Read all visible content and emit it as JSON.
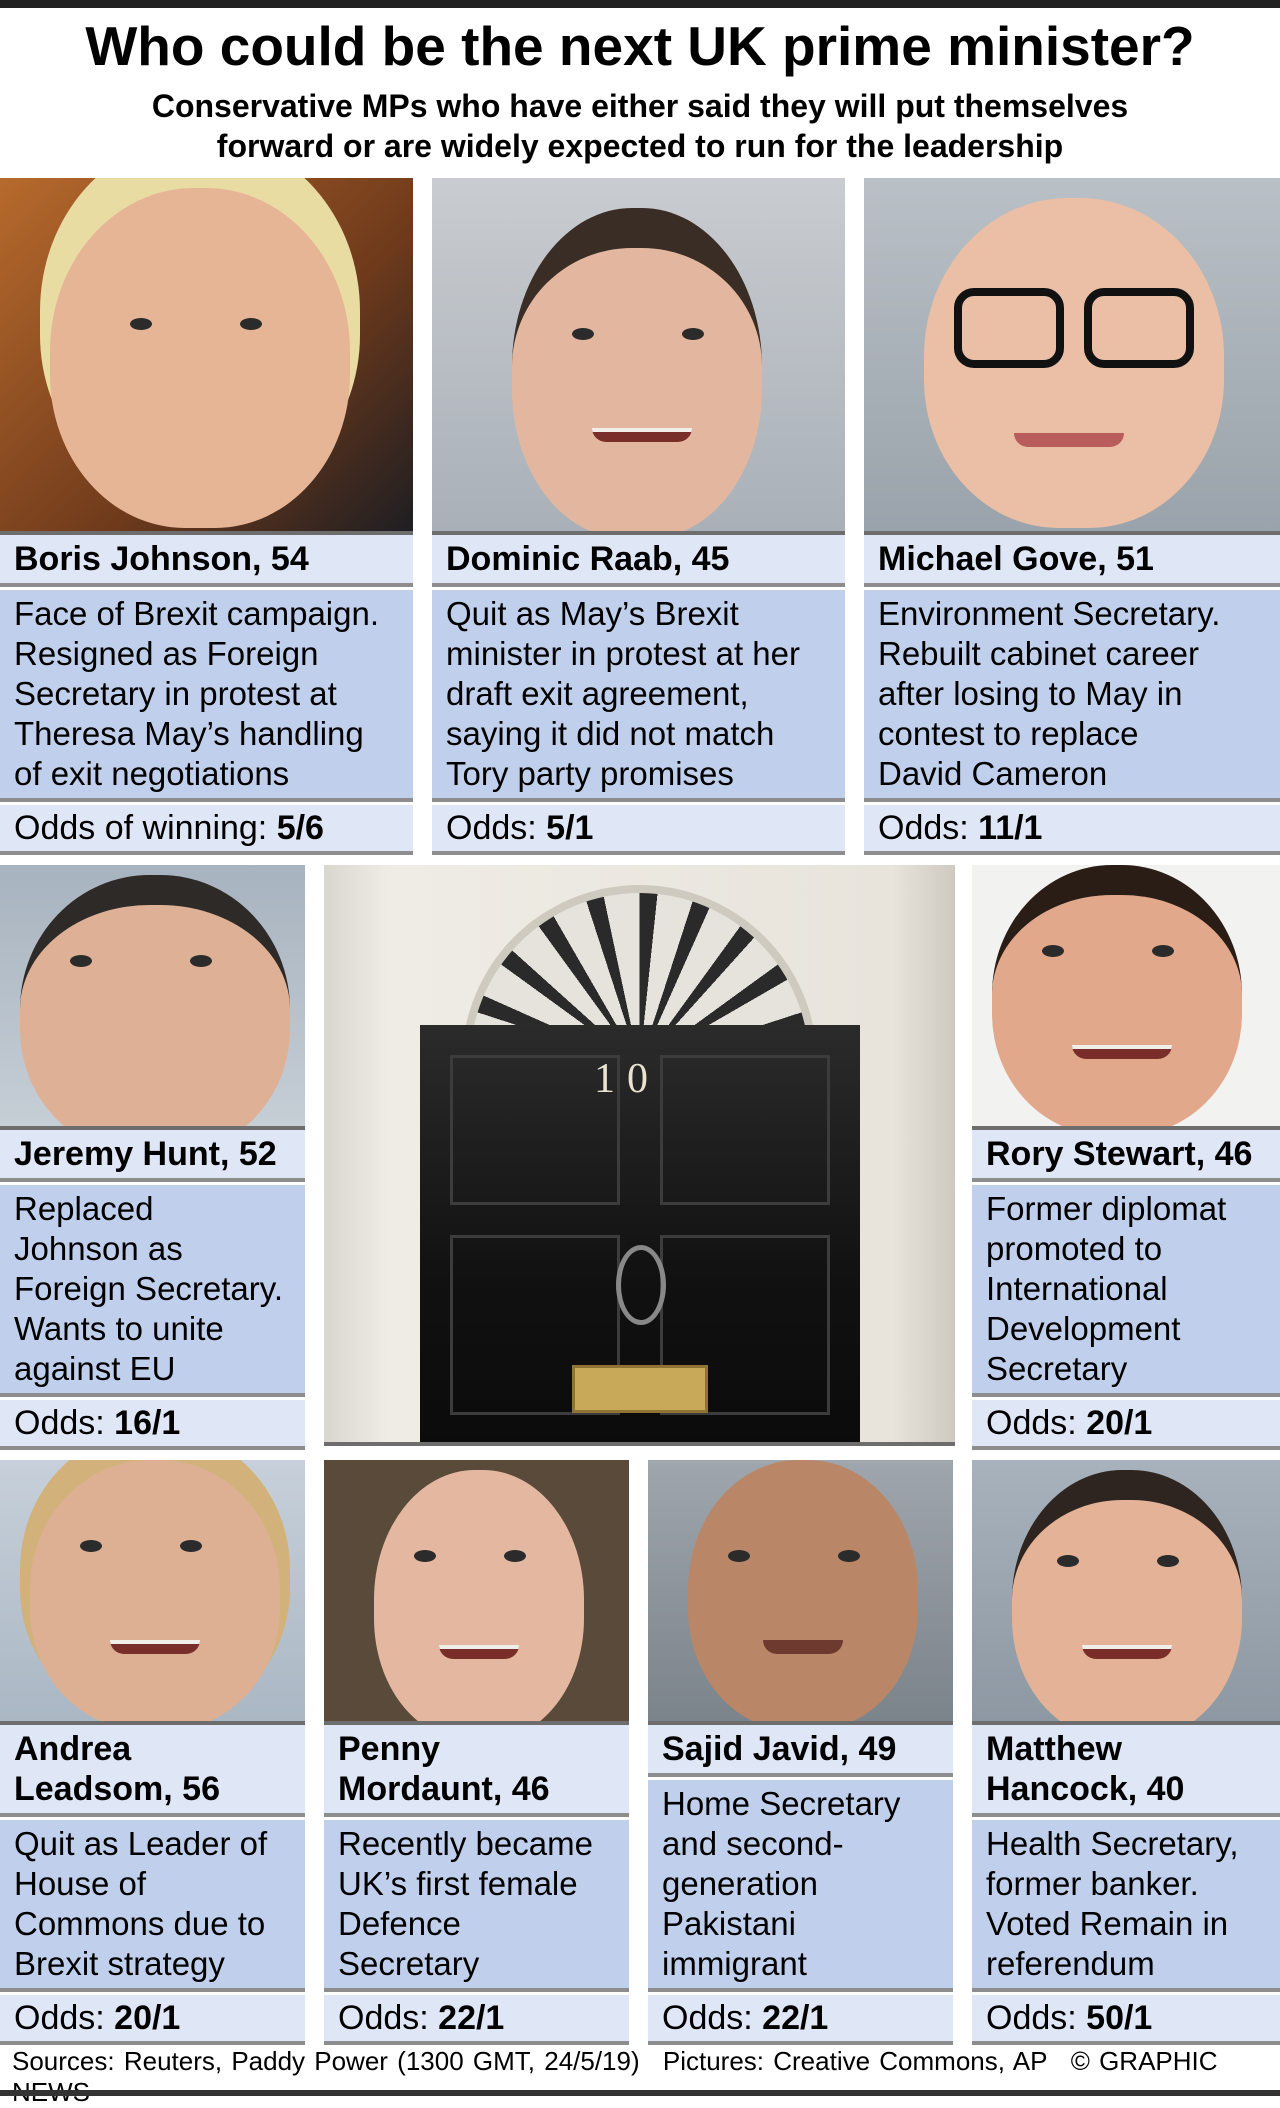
{
  "header": {
    "title": "Who could be the next UK prime minister?",
    "subtitle": "Conservative MPs who have either said they will put themselves\nforward or are widely expected to run for the leadership"
  },
  "candidates": [
    {
      "name": "Boris Johnson, 54",
      "description": "Face of Brexit campaign.\nResigned as Foreign\nSecretary in protest at\nTheresa May’s handling\nof exit negotiations",
      "odds_label": "Odds of winning: ",
      "odds": "5/6"
    },
    {
      "name": "Dominic Raab, 45",
      "description": "Quit as May’s Brexit\nminister in protest at her\ndraft exit agreement,\nsaying it did not match\nTory party promises",
      "odds_label": "Odds: ",
      "odds": "5/1"
    },
    {
      "name": "Michael Gove, 51",
      "description": "Environment Secretary.\nRebuilt cabinet career\nafter losing to May in\ncontest to replace\nDavid Cameron",
      "odds_label": "Odds: ",
      "odds": "11/1"
    },
    {
      "name": "Jeremy Hunt, 52",
      "description": "Replaced\nJohnson as\nForeign Secretary.\nWants to unite\nagainst EU",
      "odds_label": "Odds: ",
      "odds": "16/1"
    },
    {
      "name": "Rory Stewart, 46",
      "description": "Former diplomat\npromoted to\nInternational\nDevelopment\nSecretary",
      "odds_label": "Odds: ",
      "odds": "20/1"
    },
    {
      "name": "Andrea\nLeadsom, 56",
      "description": "Quit as Leader of\nHouse of\nCommons due to\nBrexit strategy",
      "odds_label": "Odds: ",
      "odds": "20/1"
    },
    {
      "name": "Penny\nMordaunt, 46",
      "description": "Recently became\nUK’s first female\nDefence\nSecretary",
      "odds_label": "Odds: ",
      "odds": "22/1"
    },
    {
      "name": "Sajid Javid, 49",
      "description": "Home Secretary\nand second-\ngeneration\nPakistani\nimmigrant",
      "odds_label": "Odds: ",
      "odds": "22/1"
    },
    {
      "name": "Matthew\nHancock, 40",
      "description": "Health Secretary,\nformer banker.\nVoted Remain in\nreferendum",
      "odds_label": "Odds: ",
      "odds": "50/1"
    }
  ],
  "door": {
    "number": "10"
  },
  "footer": {
    "sources": "Sources: Reuters, Paddy Power (1300 GMT, 24/5/19)",
    "pictures": "Pictures: Creative Commons, AP",
    "credit": "© GRAPHIC NEWS"
  },
  "colors": {
    "name_band": "#dfe6f5",
    "description_band": "#c0d0ec",
    "divider": "#8d8d8d"
  }
}
